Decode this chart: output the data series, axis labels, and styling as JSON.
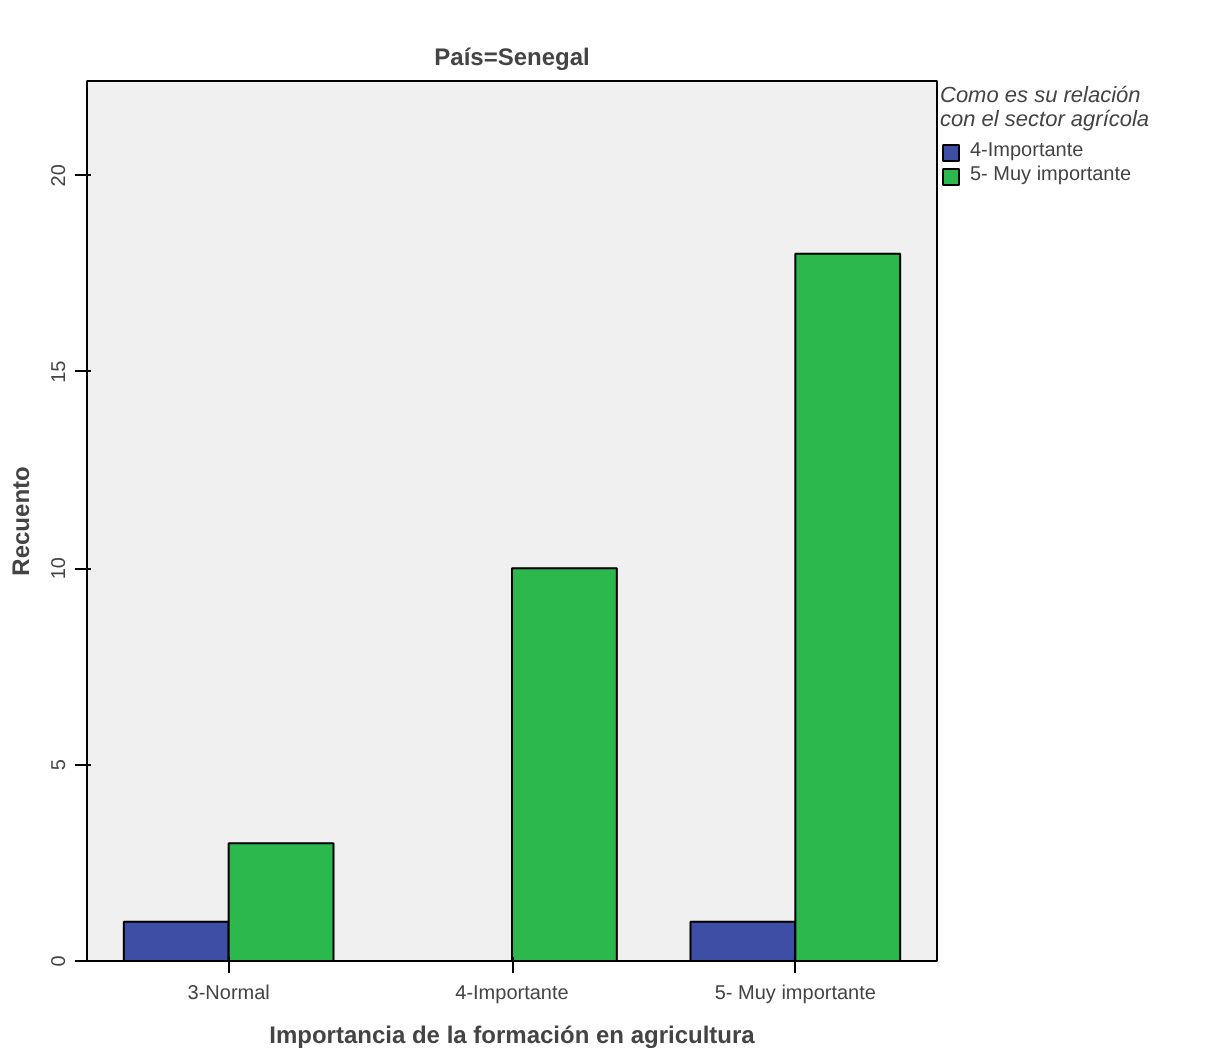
{
  "chart_data": {
    "type": "bar",
    "title": "País=Senegal",
    "xlabel": "Importancia de la formación en agricultura",
    "ylabel": "Recuento",
    "legend_title": "Como es su relación con el sector agrícola",
    "categories": [
      "3-Normal",
      "4-Importante",
      "5- Muy importante"
    ],
    "series": [
      {
        "name": "4-Importante",
        "color": "#3d4ea4",
        "values": [
          1,
          null,
          1
        ]
      },
      {
        "name": "5- Muy importante",
        "color": "#2cb84c",
        "values": [
          3,
          10,
          18
        ]
      }
    ],
    "ylim": [
      0,
      22.4
    ],
    "yticks": [
      0,
      5,
      10,
      15,
      20
    ],
    "grid": false,
    "legend": "right"
  }
}
